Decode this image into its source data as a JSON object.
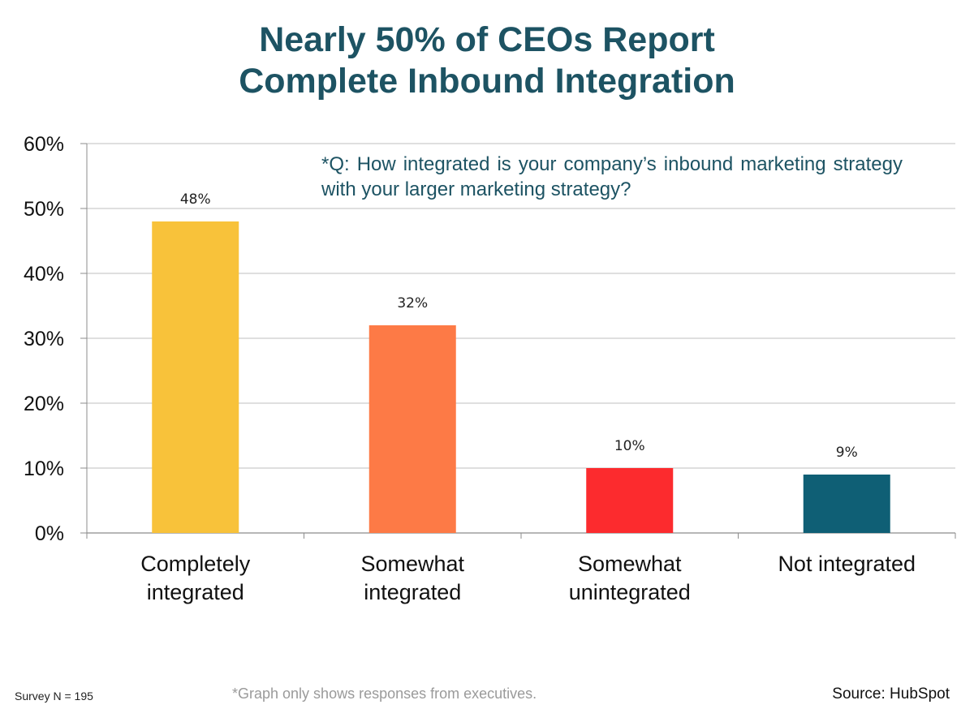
{
  "slide": {
    "title_line1": "Nearly 50% of CEOs Report",
    "title_line2": "Complete Inbound Integration",
    "question": "*Q: How integrated is your company’s inbound marketing strategy with your larger marketing strategy?",
    "survey_note": "Survey N = 195",
    "graph_note": "*Graph only shows responses from executives.",
    "source": "Source: HubSpot"
  },
  "colors": {
    "title": "#1d5363",
    "grid": "#bfbfbf",
    "axis": "#8c8c8c"
  },
  "chart_data": {
    "type": "bar",
    "title": "Nearly 50% of CEOs Report Complete Inbound Integration",
    "xlabel": "",
    "ylabel": "",
    "ylim": [
      0,
      60
    ],
    "y_ticks": [
      {
        "value": 0,
        "label": "0%"
      },
      {
        "value": 10,
        "label": "10%"
      },
      {
        "value": 20,
        "label": "20%"
      },
      {
        "value": 30,
        "label": "30%"
      },
      {
        "value": 40,
        "label": "40%"
      },
      {
        "value": 50,
        "label": "50%"
      },
      {
        "value": 60,
        "label": "60%"
      }
    ],
    "grid": true,
    "legend": "none",
    "categories": [
      {
        "lines": [
          "Completely",
          "integrated"
        ]
      },
      {
        "lines": [
          "Somewhat",
          "integrated"
        ]
      },
      {
        "lines": [
          "Somewhat",
          "unintegrated"
        ]
      },
      {
        "lines": [
          "Not integrated"
        ]
      }
    ],
    "values": [
      48,
      32,
      10,
      9
    ],
    "data_labels": [
      "48%",
      "32%",
      "10%",
      "9%"
    ],
    "bar_colors": [
      "#f8c23a",
      "#fd7a46",
      "#fc2b2e",
      "#0f5f75"
    ]
  }
}
